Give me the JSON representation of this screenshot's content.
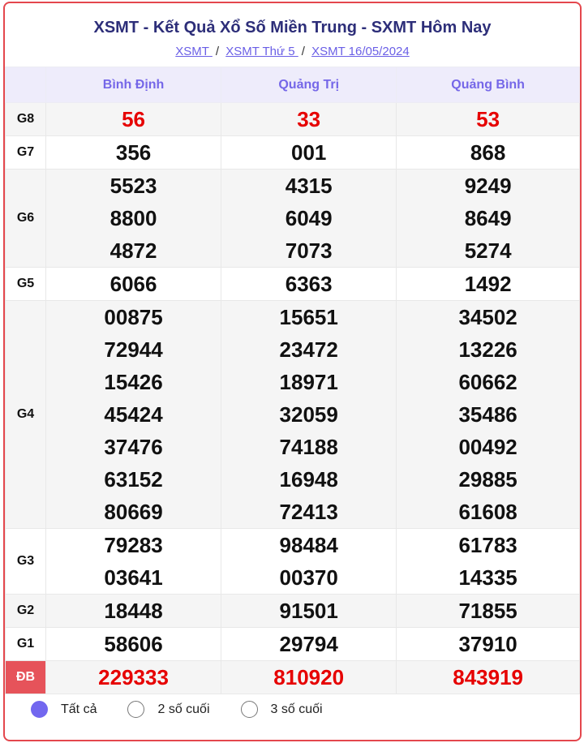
{
  "title": "XSMT - Kết Quả Xổ Số Miền Trung - SXMT Hôm Nay",
  "breadcrumb": [
    "XSMT ",
    "XSMT Thứ 5 ",
    "XSMT 16/05/2024"
  ],
  "provinces": [
    "Bình Định",
    "Quảng Trị",
    "Quảng Bình"
  ],
  "prizes": [
    {
      "label": "G8",
      "red": true,
      "values": [
        [
          "56"
        ],
        [
          "33"
        ],
        [
          "53"
        ]
      ]
    },
    {
      "label": "G7",
      "values": [
        [
          "356"
        ],
        [
          "001"
        ],
        [
          "868"
        ]
      ]
    },
    {
      "label": "G6",
      "values": [
        [
          "5523",
          "8800",
          "4872"
        ],
        [
          "4315",
          "6049",
          "7073"
        ],
        [
          "9249",
          "8649",
          "5274"
        ]
      ]
    },
    {
      "label": "G5",
      "values": [
        [
          "6066"
        ],
        [
          "6363"
        ],
        [
          "1492"
        ]
      ]
    },
    {
      "label": "G4",
      "values": [
        [
          "00875",
          "72944",
          "15426",
          "45424",
          "37476",
          "63152",
          "80669"
        ],
        [
          "15651",
          "23472",
          "18971",
          "32059",
          "74188",
          "16948",
          "72413"
        ],
        [
          "34502",
          "13226",
          "60662",
          "35486",
          "00492",
          "29885",
          "61608"
        ]
      ]
    },
    {
      "label": "G3",
      "values": [
        [
          "79283",
          "03641"
        ],
        [
          "98484",
          "00370"
        ],
        [
          "61783",
          "14335"
        ]
      ]
    },
    {
      "label": "G2",
      "values": [
        [
          "18448"
        ],
        [
          "91501"
        ],
        [
          "71855"
        ]
      ]
    },
    {
      "label": "G1",
      "values": [
        [
          "58606"
        ],
        [
          "29794"
        ],
        [
          "37910"
        ]
      ]
    },
    {
      "label": "ĐB",
      "red": true,
      "special": true,
      "values": [
        [
          "229333"
        ],
        [
          "810920"
        ],
        [
          "843919"
        ]
      ]
    }
  ],
  "filters": [
    {
      "label": "Tất cả",
      "selected": true
    },
    {
      "label": "2 số cuối",
      "selected": false
    },
    {
      "label": "3 số cuối",
      "selected": false
    }
  ]
}
